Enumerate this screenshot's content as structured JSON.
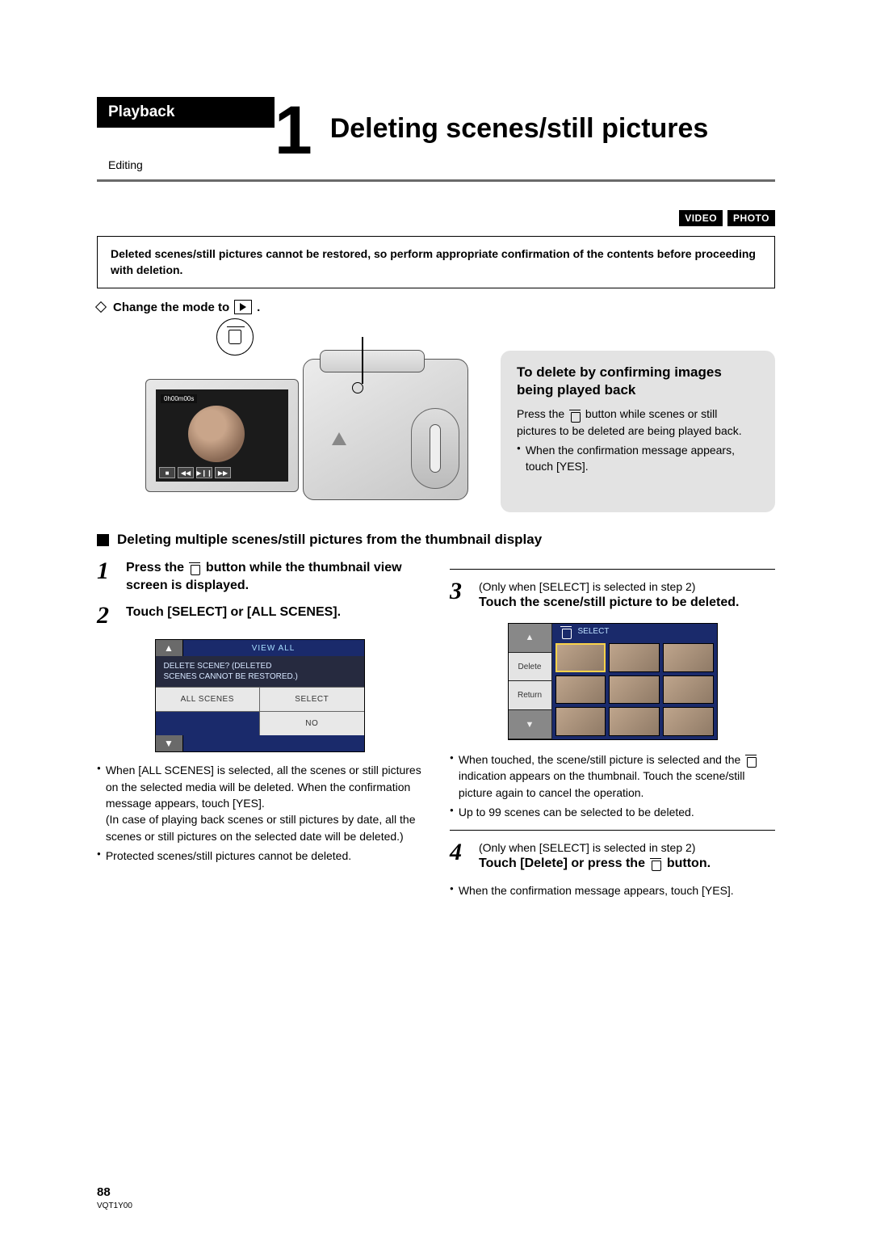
{
  "header": {
    "playback_label": "Playback",
    "editing_label": "Editing",
    "chapter_number": "1",
    "title": "Deleting scenes/still pictures"
  },
  "mode_badges": [
    "VIDEO",
    "PHOTO"
  ],
  "warning_box": "Deleted scenes/still pictures cannot be restored, so perform appropriate confirmation of the contents before proceeding with deletion.",
  "change_mode_label": "Change the mode to",
  "camera_lcd": {
    "time_label": "0h00m00s",
    "controls": [
      "■",
      "◀◀",
      "▶❙❙",
      "▶▶"
    ]
  },
  "delete_confirm_box": {
    "heading": "To delete by confirming images being played back",
    "text_pre": "Press the ",
    "text_post": " button while scenes or still pictures to be deleted are being played back.",
    "bullet1": "When the confirmation message appears, touch [YES]."
  },
  "section_heading": "Deleting multiple scenes/still pictures from the thumbnail display",
  "steps": {
    "s1": {
      "num": "1",
      "title_pre": "Press the ",
      "title_post": " button while the thumbnail view screen is displayed."
    },
    "s2": {
      "num": "2",
      "title": "Touch [SELECT] or [ALL SCENES].",
      "ui": {
        "view_all": "VIEW ALL",
        "msg_line1": "DELETE SCENE? (DELETED",
        "msg_line2": "SCENES CANNOT BE RESTORED.)",
        "btn_all": "ALL SCENES",
        "btn_select": "SELECT",
        "btn_no": "NO"
      },
      "bullets": [
        "When [ALL SCENES] is selected, all the scenes or still pictures on the selected media will be deleted. When the confirmation message appears, touch [YES].\n(In case of playing back scenes or still pictures by date, all the scenes or still pictures on the selected date will be deleted.)",
        "Protected scenes/still pictures cannot be deleted."
      ]
    },
    "s3": {
      "num": "3",
      "note": "(Only when [SELECT] is selected in step 2)",
      "title": "Touch the scene/still picture to be deleted.",
      "ui": {
        "header_label": "SELECT",
        "side_delete": "Delete",
        "side_return": "Return"
      },
      "bullets": [
        "When touched, the scene/still picture is selected and the 🗑 indication appears on the thumbnail. Touch the scene/still picture again to cancel the operation.",
        "Up to 99 scenes can be selected to be deleted."
      ]
    },
    "s4": {
      "num": "4",
      "note": "(Only when [SELECT] is selected in step 2)",
      "title_pre": "Touch [Delete] or press the ",
      "title_post": " button.",
      "bullets": [
        "When the confirmation message appears, touch [YES]."
      ]
    }
  },
  "footer": {
    "page_num": "88",
    "doc_code": "VQT1Y00"
  },
  "colors": {
    "header_bg": "#000000",
    "rule": "#6a6a6a",
    "gray_box": "#e3e3e3",
    "ui_dark_blue": "#1a2a6b",
    "ui_light_text": "#bde0ff"
  }
}
